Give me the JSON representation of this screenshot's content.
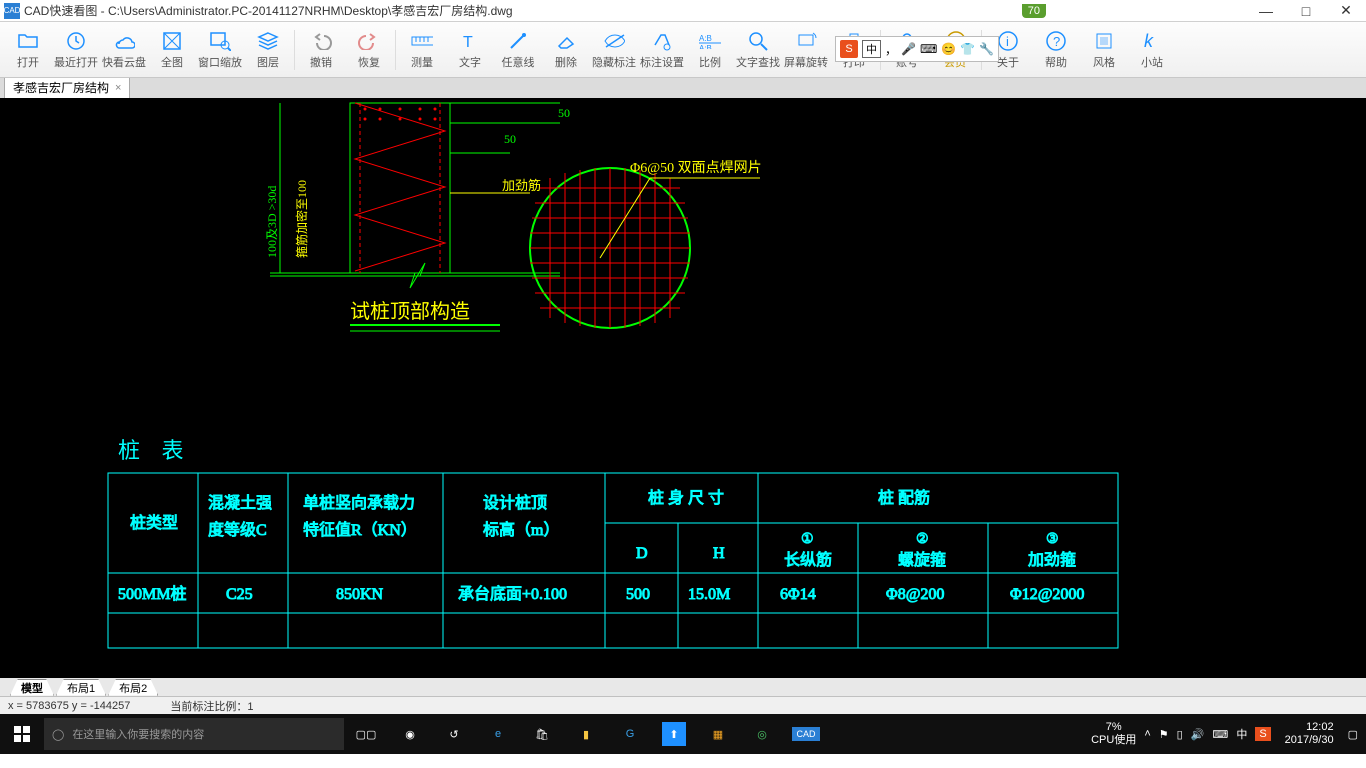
{
  "window": {
    "app_name": "CAD快速看图",
    "file_path": "C:\\Users\\Administrator.PC-20141127NRHM\\Desktop\\孝感吉宏厂房结构.dwg",
    "score": "70"
  },
  "toolbar": {
    "items": [
      {
        "label": "打开",
        "color": "#1e90ff",
        "icon": "folder"
      },
      {
        "label": "最近打开",
        "color": "#1e90ff",
        "icon": "recent"
      },
      {
        "label": "快看云盘",
        "color": "#1e90ff",
        "icon": "cloud"
      },
      {
        "label": "全图",
        "color": "#1e90ff",
        "icon": "fullview"
      },
      {
        "label": "窗口缩放",
        "color": "#1e90ff",
        "icon": "zoomwin"
      },
      {
        "label": "图层",
        "color": "#1e90ff",
        "icon": "layers"
      },
      {
        "label": "撤销",
        "color": "#888",
        "icon": "undo"
      },
      {
        "label": "恢复",
        "color": "#e28b8b",
        "icon": "redo"
      },
      {
        "label": "测量",
        "color": "#1e90ff",
        "icon": "measure"
      },
      {
        "label": "文字",
        "color": "#1e90ff",
        "icon": "text"
      },
      {
        "label": "任意线",
        "color": "#1e90ff",
        "icon": "line"
      },
      {
        "label": "删除",
        "color": "#1e90ff",
        "icon": "erase"
      },
      {
        "label": "隐藏标注",
        "color": "#1e90ff",
        "icon": "hide"
      },
      {
        "label": "标注设置",
        "color": "#1e90ff",
        "icon": "dimset"
      },
      {
        "label": "比例",
        "color": "#1e90ff",
        "icon": "scale"
      },
      {
        "label": "文字查找",
        "color": "#1e90ff",
        "icon": "find"
      },
      {
        "label": "屏幕旋转",
        "color": "#1e90ff",
        "icon": "rotate"
      },
      {
        "label": "打印",
        "color": "#1e90ff",
        "icon": "print"
      },
      {
        "label": "账号",
        "color": "#1e90ff",
        "icon": "user"
      },
      {
        "label": "会员",
        "color": "#c99a00",
        "icon": "vip"
      },
      {
        "label": "关于",
        "color": "#1e90ff",
        "icon": "info"
      },
      {
        "label": "帮助",
        "color": "#1e90ff",
        "icon": "help"
      },
      {
        "label": "风格",
        "color": "#1e90ff",
        "icon": "style"
      },
      {
        "label": "小站",
        "color": "#1e90ff",
        "icon": "site"
      }
    ]
  },
  "ime": {
    "zh": "中",
    "pin": "，"
  },
  "doctab": {
    "label": "孝感吉宏厂房结构"
  },
  "drawing": {
    "elevation_label": "试桩顶部构造",
    "dim_left_v": "100及3D  >30d",
    "dim_left_v2": "箍筋加密至100",
    "dim_50_top": "50",
    "dim_50_mid": "50",
    "jia_jin": "加劲筋",
    "circle_label": "Φ6@50 双面点焊网片",
    "table_title": "桩 表",
    "headers": {
      "type": "桩类型",
      "conc": "混凝土强度等级C",
      "bearing": "单桩竖向承载力特征值R（KN）",
      "toplevel": "设计桩顶标高（m）",
      "size": "桩 身 尺 寸",
      "size_d": "D",
      "size_h": "H",
      "reinf": "桩    配筋",
      "r1": "长纵筋",
      "r2": "螺旋箍",
      "r3": "加劲箍",
      "c1": "①",
      "c2": "②",
      "c3": "③"
    },
    "row": {
      "type": "500MM桩",
      "conc": "C25",
      "bearing": "850KN",
      "toplevel": "承台底面+0.100",
      "d": "500",
      "h": "15.0M",
      "r1": "6Φ14",
      "r2": "Φ8@200",
      "r3": "Φ12@2000"
    }
  },
  "bottom_tabs": {
    "t1": "模型",
    "t2": "布局1",
    "t3": "布局2"
  },
  "status": {
    "coords": "x = 5783675  y = -144257",
    "scale": "当前标注比例：1"
  },
  "taskbar": {
    "search_placeholder": "在这里输入你要搜索的内容",
    "cpu_pct": "7%",
    "cpu_lbl": "CPU使用",
    "time": "12:02",
    "date": "2017/9/30",
    "ime": "中"
  }
}
